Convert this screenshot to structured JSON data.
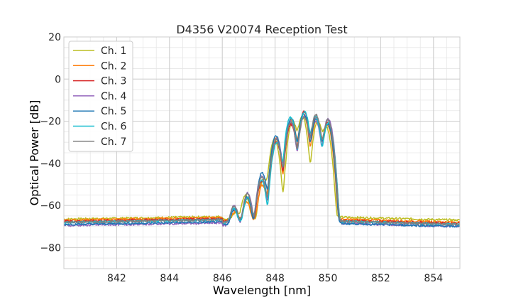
{
  "chart_data": {
    "type": "line",
    "title": "D4356 V20074 Reception Test",
    "xlabel": "Wavelength [nm]",
    "ylabel": "Optical Power [dB]",
    "xlim": [
      840,
      855
    ],
    "ylim": [
      -90,
      20
    ],
    "xticks": [
      842,
      844,
      846,
      848,
      850,
      852,
      854
    ],
    "yticks": [
      20,
      0,
      -20,
      -40,
      -60,
      -80
    ],
    "grid": true,
    "legend_position": "top-left",
    "series": [
      {
        "name": "Ch. 1",
        "color": "#bcbd22",
        "baseline": -66.5,
        "tail": -67,
        "peak_scale": 1.0,
        "peak_shift": 0.12
      },
      {
        "name": "Ch. 2",
        "color": "#ff7f0e",
        "baseline": -67,
        "tail": -68,
        "peak_scale": 1.02,
        "peak_shift": 0.04
      },
      {
        "name": "Ch. 3",
        "color": "#d62728",
        "baseline": -67.5,
        "tail": -68.5,
        "peak_scale": 1.0,
        "peak_shift": 0.0
      },
      {
        "name": "Ch. 4",
        "color": "#9467bd",
        "baseline": -69.5,
        "tail": -70,
        "peak_scale": 0.97,
        "peak_shift": -0.02
      },
      {
        "name": "Ch. 5",
        "color": "#1f77b4",
        "baseline": -69,
        "tail": -70,
        "peak_scale": 0.96,
        "peak_shift": 0.02
      },
      {
        "name": "Ch. 6",
        "color": "#17becf",
        "baseline": -68,
        "tail": -69,
        "peak_scale": 0.98,
        "peak_shift": -0.03
      },
      {
        "name": "Ch. 7",
        "color": "#7f7f7f",
        "baseline": -68,
        "tail": -69,
        "peak_scale": 0.97,
        "peak_shift": 0.0
      }
    ],
    "peaks": [
      {
        "x": 846.45,
        "y": -64
      },
      {
        "x": 846.95,
        "y": -57
      },
      {
        "x": 847.5,
        "y": -48
      },
      {
        "x": 848.05,
        "y": -29
      },
      {
        "x": 848.6,
        "y": -20
      },
      {
        "x": 849.1,
        "y": -17
      },
      {
        "x": 849.55,
        "y": -19
      },
      {
        "x": 850.0,
        "y": -21
      }
    ]
  }
}
